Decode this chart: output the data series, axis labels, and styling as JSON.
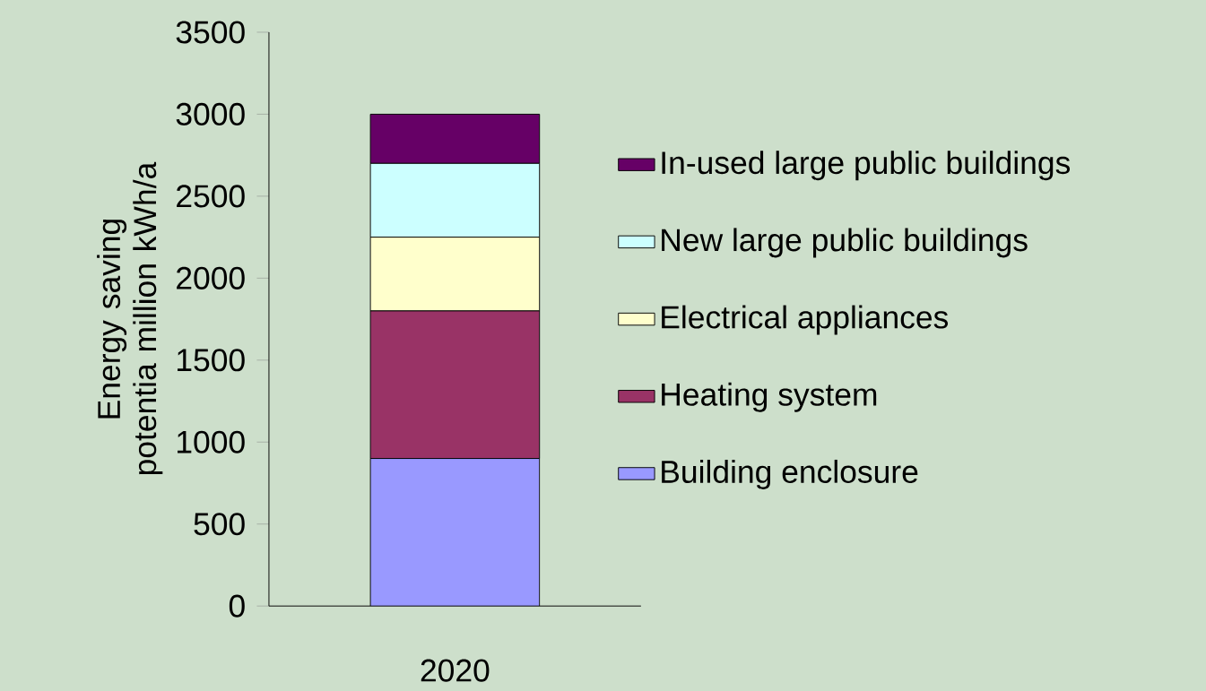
{
  "chart_data": {
    "type": "bar",
    "stacked": true,
    "ylabel": "Energy saving potentia million kWh/a",
    "categories": [
      "2020"
    ],
    "series": [
      {
        "name": "Building enclosure",
        "color": "#9999ff",
        "values": [
          900
        ]
      },
      {
        "name": "Heating system",
        "color": "#993366",
        "values": [
          900
        ]
      },
      {
        "name": "Electrical appliances",
        "color": "#ffffcc",
        "values": [
          450
        ]
      },
      {
        "name": "New large public buildings",
        "color": "#ccffff",
        "values": [
          450
        ]
      },
      {
        "name": "In-used large public buildings",
        "color": "#660066",
        "values": [
          300
        ]
      }
    ],
    "ylim": [
      0,
      3500
    ],
    "yticks": [
      0,
      500,
      1000,
      1500,
      2000,
      2500,
      3000,
      3500
    ],
    "legend": "right"
  }
}
